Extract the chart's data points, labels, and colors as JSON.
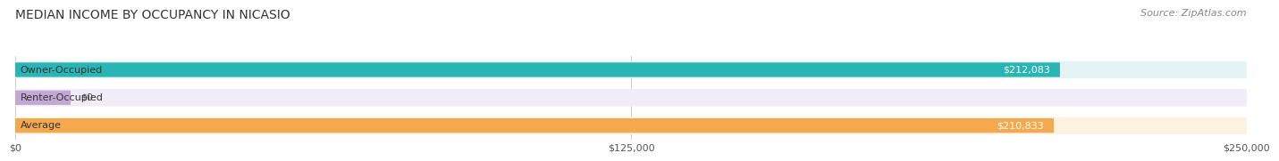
{
  "title": "MEDIAN INCOME BY OCCUPANCY IN NICASIO",
  "source": "Source: ZipAtlas.com",
  "categories": [
    "Owner-Occupied",
    "Renter-Occupied",
    "Average"
  ],
  "values": [
    212083,
    0,
    210833
  ],
  "bar_colors": [
    "#2ab5b5",
    "#c4a8d4",
    "#f5a94e"
  ],
  "value_labels": [
    "$212,083",
    "$0",
    "$210,833"
  ],
  "xlim": [
    0,
    250000
  ],
  "xtick_values": [
    0,
    125000,
    250000
  ],
  "xtick_labels": [
    "$0",
    "$125,000",
    "$250,000"
  ],
  "title_fontsize": 10,
  "source_fontsize": 8,
  "label_fontsize": 8,
  "value_fontsize": 8,
  "tick_fontsize": 8,
  "bg_color": "#ffffff",
  "bar_height": 0.52,
  "row_bg_colors": [
    "#e4f4f4",
    "#f0ecf8",
    "#fdf1e0"
  ]
}
